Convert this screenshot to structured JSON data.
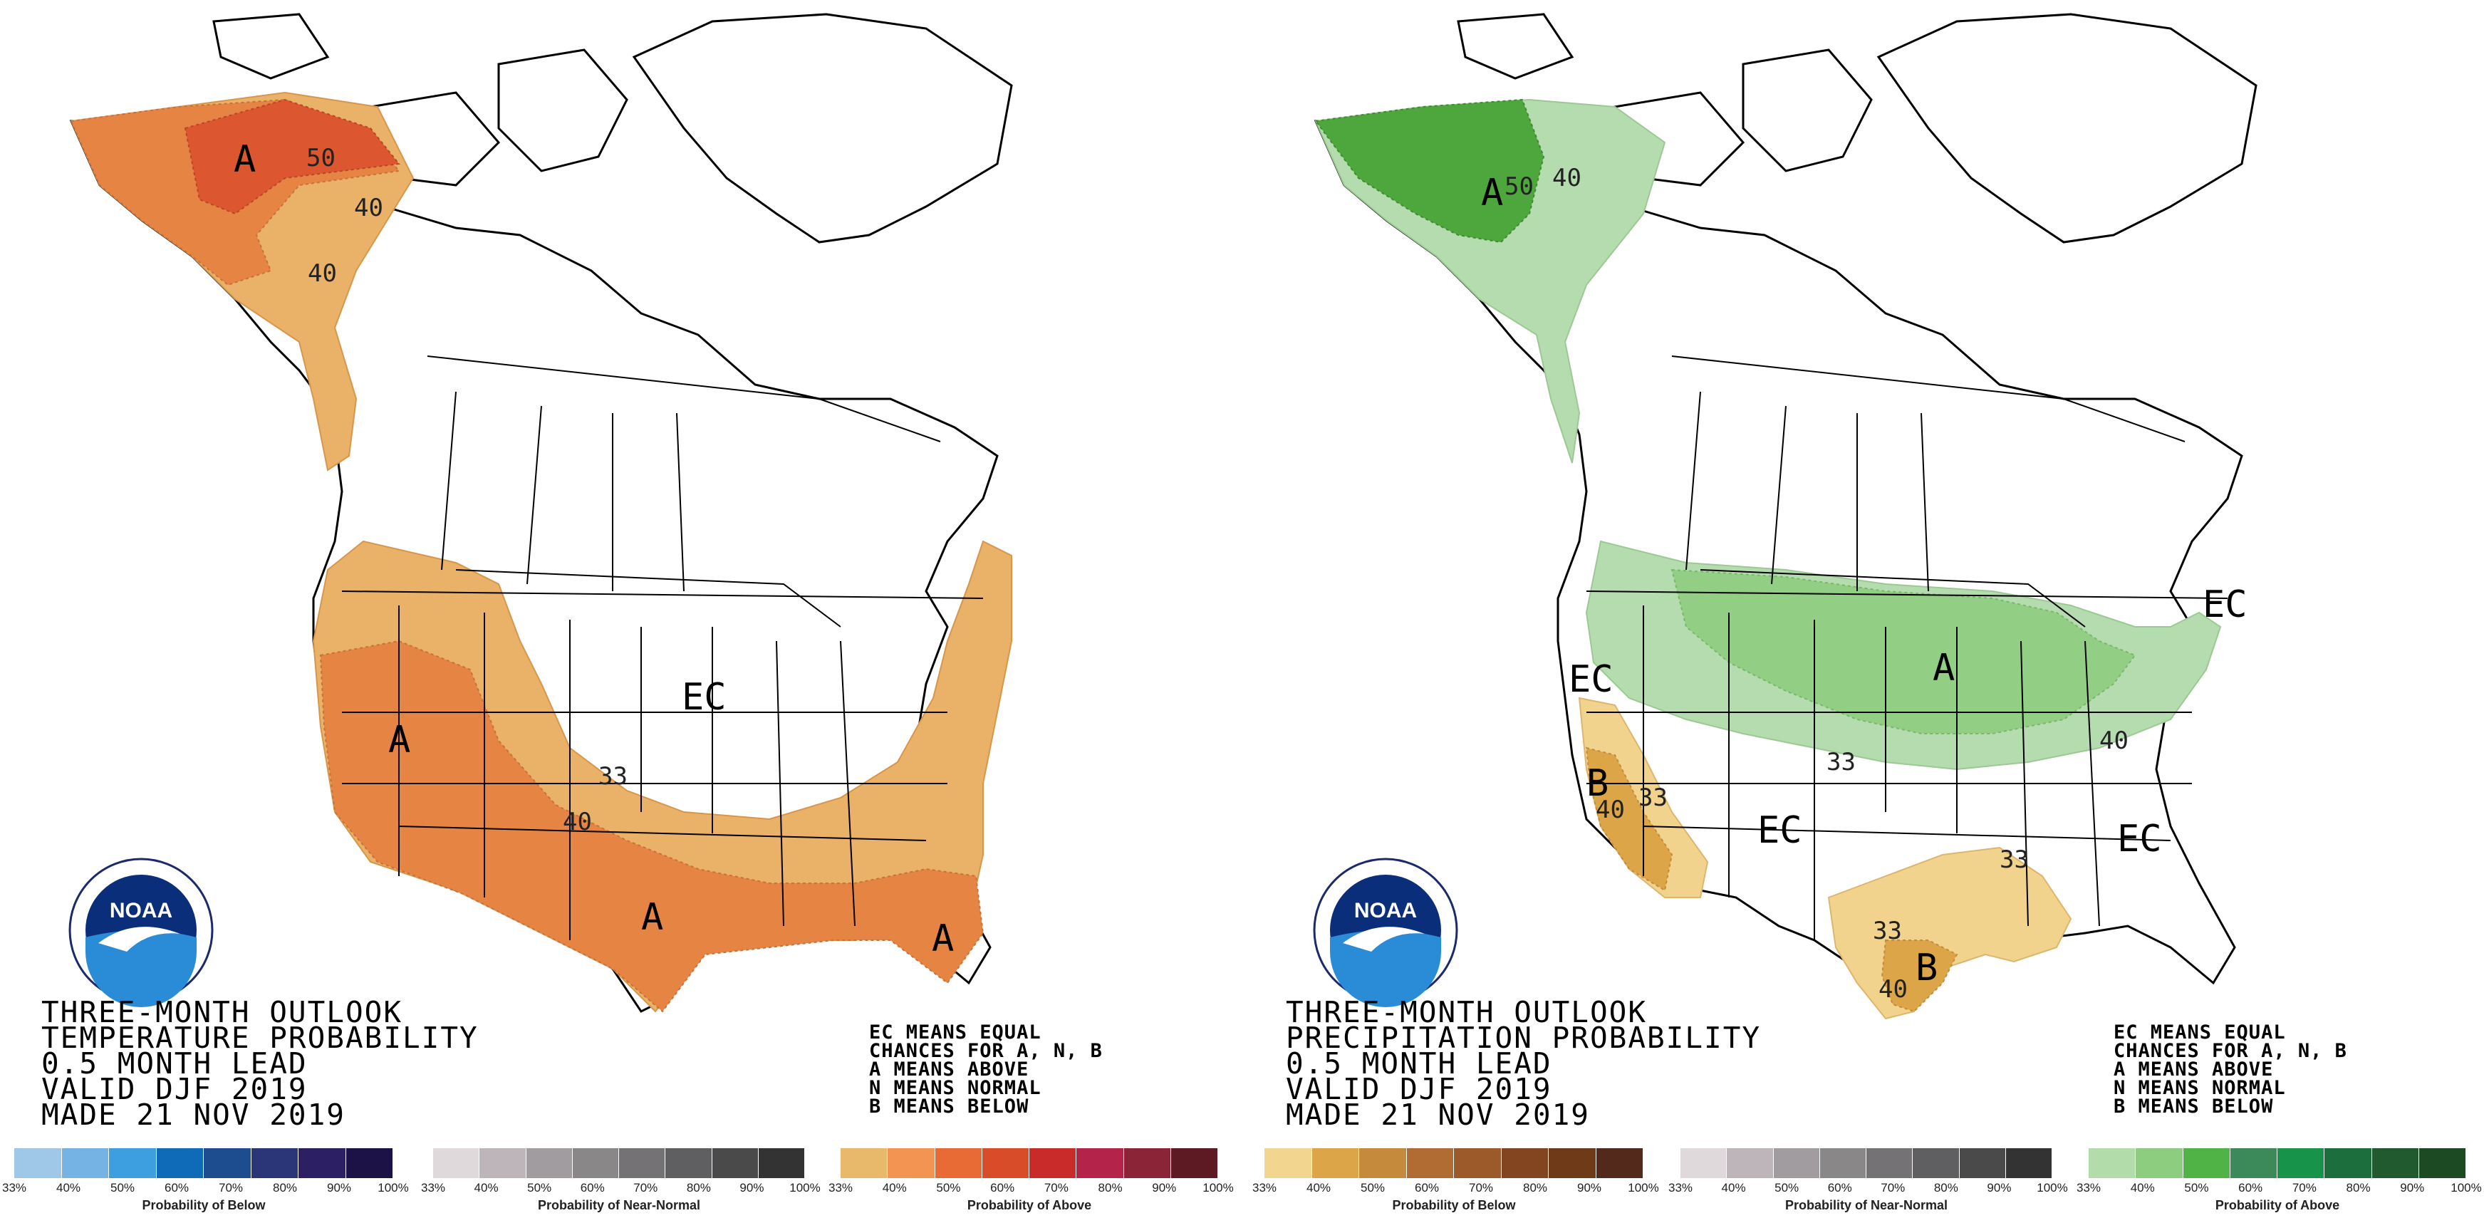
{
  "panels": [
    {
      "id": "temp",
      "title_lines": [
        "THREE-MONTH OUTLOOK",
        "TEMPERATURE PROBABILITY",
        "0.5 MONTH LEAD",
        "VALID DJF 2019",
        "MADE 21 NOV 2019"
      ],
      "legend_note_lines": [
        "EC MEANS EQUAL",
        "CHANCES FOR A, N, B",
        "A MEANS ABOVE",
        "N MEANS NORMAL",
        "B MEANS BELOW"
      ],
      "region_labels": {
        "alaska_a": "A",
        "west_a": "A",
        "texas_a": "A",
        "florida_a": "A",
        "center_ec": "EC"
      },
      "contour_labels": {
        "ak_50": "50",
        "ak_40_upper": "40",
        "ak_40_lower": "40",
        "co_33": "33",
        "nm_40": "40"
      },
      "scales": [
        {
          "title": "Probability of Below",
          "ticks": [
            "33%",
            "40%",
            "50%",
            "60%",
            "70%",
            "80%",
            "90%",
            "100%"
          ],
          "colors": [
            "#9fc7e8",
            "#75b3e5",
            "#3e9fe0",
            "#0f6bb7",
            "#1e4d8f",
            "#2a3677",
            "#2c1f63",
            "#1d1245"
          ]
        },
        {
          "title": "Probability of Near-Normal",
          "ticks": [
            "33%",
            "40%",
            "50%",
            "60%",
            "70%",
            "80%",
            "90%",
            "100%"
          ],
          "colors": [
            "#e0d9dc",
            "#bdb5ba",
            "#a19ca0",
            "#8a8789",
            "#747274",
            "#5f5e60",
            "#4a4a4b",
            "#333333"
          ]
        },
        {
          "title": "Probability of Above",
          "ticks": [
            "33%",
            "40%",
            "50%",
            "60%",
            "70%",
            "80%",
            "90%",
            "100%"
          ],
          "colors": [
            "#e9b96b",
            "#f49452",
            "#e86a35",
            "#d94c2a",
            "#c92a2a",
            "#b3234a",
            "#8a2436",
            "#5e1a22"
          ]
        }
      ],
      "colors": {
        "above_33": "#e9b268",
        "above_40": "#e68444",
        "above_50": "#dc5630"
      }
    },
    {
      "id": "precip",
      "title_lines": [
        "THREE-MONTH OUTLOOK",
        "PRECIPITATION PROBABILITY",
        "0.5 MONTH LEAD",
        "VALID DJF 2019",
        "MADE 21 NOV 2019"
      ],
      "legend_note_lines": [
        "EC MEANS EQUAL",
        "CHANCES FOR A, N, B",
        "A MEANS ABOVE",
        "N MEANS NORMAL",
        "B MEANS BELOW"
      ],
      "region_labels": {
        "alaska_a": "A",
        "midwest_a": "A",
        "west_ec": "EC",
        "ne_ec": "EC",
        "sw_ec": "EC",
        "se_ec": "EC",
        "ca_b": "B",
        "tx_b": "B"
      },
      "contour_labels": {
        "ak_50": "50",
        "ak_40": "40",
        "co_33": "33",
        "oh_40": "40",
        "ca_33": "33",
        "ca_40": "40",
        "la_33": "33",
        "tx_33": "33",
        "tx_40": "40"
      },
      "scales": [
        {
          "title": "Probability of Below",
          "ticks": [
            "33%",
            "40%",
            "50%",
            "60%",
            "70%",
            "80%",
            "90%",
            "100%"
          ],
          "colors": [
            "#f2d68f",
            "#dba548",
            "#c58a3c",
            "#b16c33",
            "#9c5a2b",
            "#834420",
            "#6e3a17",
            "#52291a"
          ]
        },
        {
          "title": "Probability of Near-Normal",
          "ticks": [
            "33%",
            "40%",
            "50%",
            "60%",
            "70%",
            "80%",
            "90%",
            "100%"
          ],
          "colors": [
            "#e0d9dc",
            "#bdb5ba",
            "#a19ca0",
            "#8a8789",
            "#747274",
            "#5f5e60",
            "#4a4a4b",
            "#333333"
          ]
        },
        {
          "title": "Probability of Above",
          "ticks": [
            "33%",
            "40%",
            "50%",
            "60%",
            "70%",
            "80%",
            "90%",
            "100%"
          ],
          "colors": [
            "#b3dcab",
            "#8ccd7f",
            "#4fb346",
            "#3c8a5a",
            "#17934a",
            "#1d6e3d",
            "#225a30",
            "#1b4a23"
          ]
        }
      ],
      "colors": {
        "above_33": "#b5dcaf",
        "above_40": "#92ce83",
        "above_50": "#4ea73c",
        "below_33": "#f2d38d",
        "below_40": "#dba548"
      }
    }
  ]
}
